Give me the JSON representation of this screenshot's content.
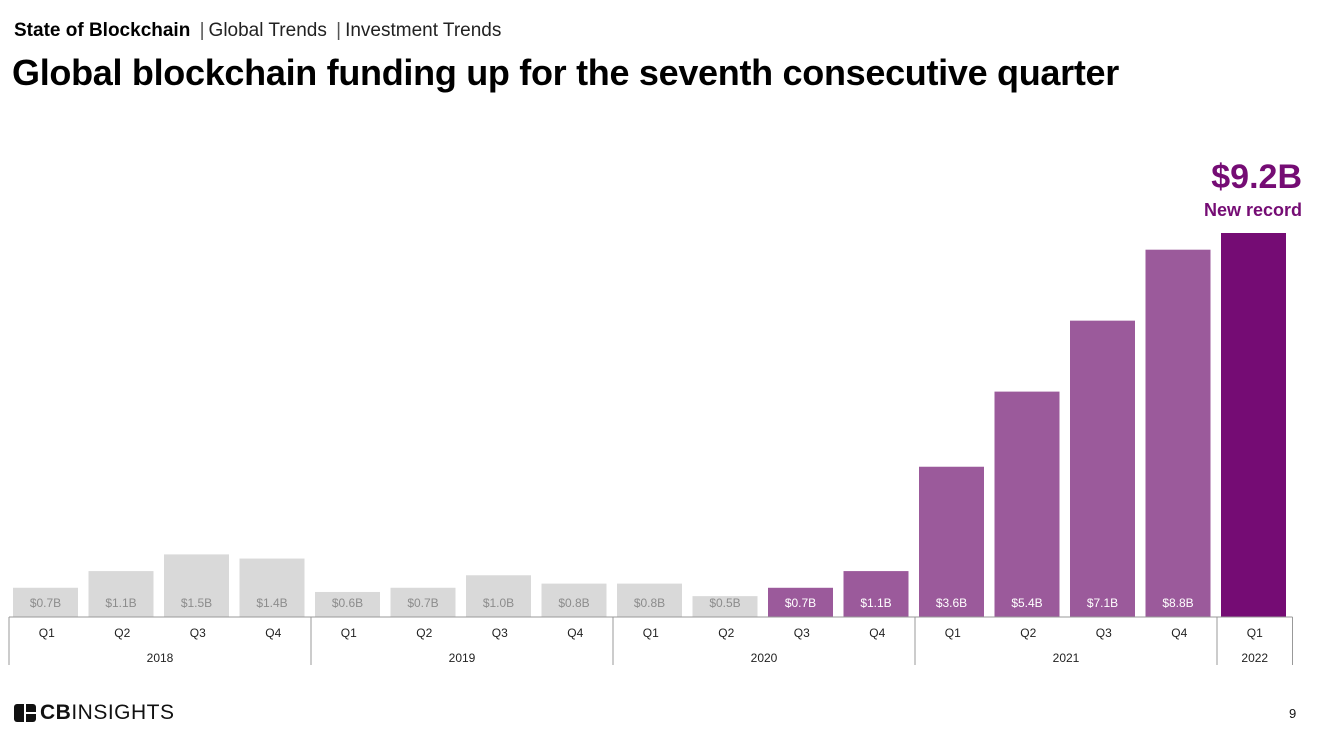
{
  "breadcrumb": {
    "section": "State of Blockchain",
    "sub1": "Global Trends",
    "sub2": "Investment Trends",
    "separator": "|"
  },
  "page_title": "Global blockchain funding up for the seventh consecutive quarter",
  "colors": {
    "past": "#d9d9d9",
    "past_label": "#8c8c8c",
    "growth": "#9b5a9b",
    "highlight": "#750c74",
    "axis": "#999999"
  },
  "chart_data": {
    "type": "bar",
    "title": "",
    "xlabel": "",
    "ylabel": "",
    "ylim": [
      0,
      9.2
    ],
    "grid": false,
    "categories": [
      "Q1",
      "Q2",
      "Q3",
      "Q4",
      "Q1",
      "Q2",
      "Q3",
      "Q4",
      "Q1",
      "Q2",
      "Q3",
      "Q4",
      "Q1",
      "Q2",
      "Q3",
      "Q4",
      "Q1"
    ],
    "groups": [
      {
        "label": "2018",
        "count": 4
      },
      {
        "label": "2019",
        "count": 4
      },
      {
        "label": "2020",
        "count": 4
      },
      {
        "label": "2021",
        "count": 4
      },
      {
        "label": "2022",
        "count": 1
      }
    ],
    "values": [
      0.7,
      1.1,
      1.5,
      1.4,
      0.6,
      0.7,
      1.0,
      0.8,
      0.8,
      0.5,
      0.7,
      1.1,
      3.6,
      5.4,
      7.1,
      8.8,
      9.2
    ],
    "data_labels": [
      "$0.7B",
      "$1.1B",
      "$1.5B",
      "$1.4B",
      "$0.6B",
      "$0.7B",
      "$1.0B",
      "$0.8B",
      "$0.8B",
      "$0.5B",
      "$0.7B",
      "$1.1B",
      "$3.6B",
      "$5.4B",
      "$7.1B",
      "$8.8B",
      "$9.2B"
    ],
    "bar_style": [
      "past",
      "past",
      "past",
      "past",
      "past",
      "past",
      "past",
      "past",
      "past",
      "past",
      "growth",
      "growth",
      "growth",
      "growth",
      "growth",
      "growth",
      "highlight"
    ],
    "annotation": {
      "value": "$9.2B",
      "text": "New record"
    }
  },
  "footer": {
    "logo_text_bold": "CB",
    "logo_text": "INSIGHTS",
    "page_number": "9"
  }
}
